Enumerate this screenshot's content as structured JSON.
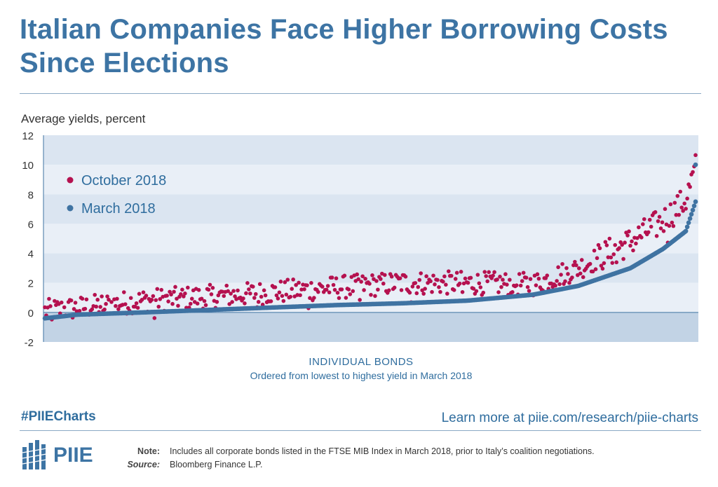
{
  "title": "Italian Companies Face Higher Borrowing Costs Since Elections",
  "colors": {
    "october": "#b5114f",
    "march": "#3f73a2",
    "band_light": "#e9eff7",
    "band_mid": "#dbe5f1",
    "negative_band": "#c2d3e5"
  },
  "chart_data": {
    "type": "scatter",
    "title": "Italian Companies Face Higher Borrowing Costs Since Elections",
    "ylabel": "Average yields, percent",
    "xlabel": "INDIVIDUAL BONDS",
    "xsublabel": "Ordered from lowest to highest yield in March 2018",
    "ylim": [
      -2,
      12
    ],
    "yticks": [
      "12",
      "10",
      "8",
      "6",
      "4",
      "2",
      "0",
      "-2"
    ],
    "legend_position": "top-left",
    "series": [
      {
        "name": "October 2018",
        "color": "#b5114f",
        "y_control": [
          [
            0,
            0.1
          ],
          [
            0.05,
            0.3
          ],
          [
            0.15,
            0.8
          ],
          [
            0.3,
            1.2
          ],
          [
            0.45,
            1.7
          ],
          [
            0.55,
            2.0
          ],
          [
            0.65,
            2.0
          ],
          [
            0.75,
            1.9
          ],
          [
            0.82,
            3.0
          ],
          [
            0.9,
            4.8
          ],
          [
            0.95,
            6.2
          ],
          [
            0.985,
            7.6
          ],
          [
            1.0,
            9.8
          ]
        ]
      },
      {
        "name": "March 2018",
        "color": "#3f73a2",
        "y_control": [
          [
            0,
            -0.4
          ],
          [
            0.05,
            -0.15
          ],
          [
            0.15,
            0.0
          ],
          [
            0.3,
            0.25
          ],
          [
            0.45,
            0.5
          ],
          [
            0.55,
            0.62
          ],
          [
            0.65,
            0.8
          ],
          [
            0.75,
            1.2
          ],
          [
            0.82,
            1.8
          ],
          [
            0.9,
            3.0
          ],
          [
            0.95,
            4.3
          ],
          [
            0.985,
            5.5
          ],
          [
            1.0,
            7.5
          ]
        ],
        "last_point": 10.0
      }
    ],
    "n_points": 470
  },
  "footer": {
    "hashtag": "#PIIECharts",
    "learn_more": "Learn more at piie.com/research/piie-charts",
    "logo": "PIIE",
    "note_label": "Note:",
    "note_text": "Includes all corporate bonds listed in the FTSE MIB Index in March 2018, prior to Italy’s coalition negotiations.",
    "source_label": "Source:",
    "source_text": "Bloomberg Finance L.P."
  }
}
